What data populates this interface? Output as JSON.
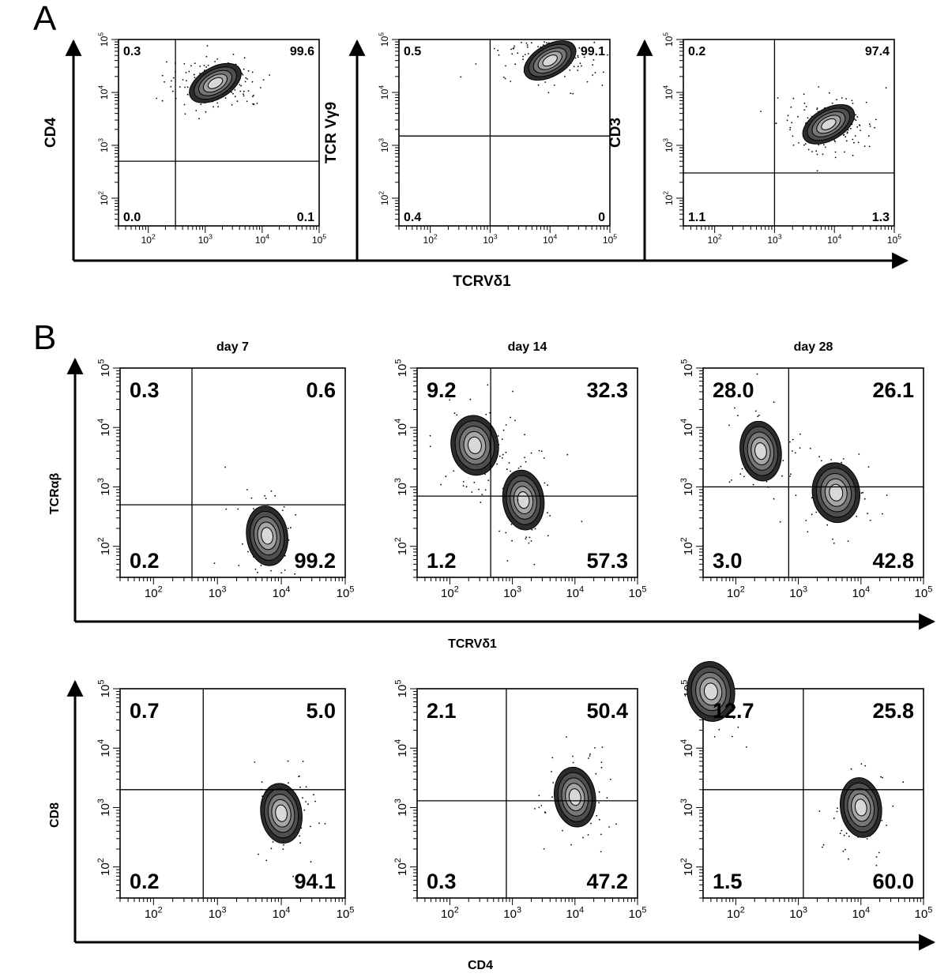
{
  "figure": {
    "panel_a_letter": "A",
    "panel_b_letter": "B",
    "panel_a_xlabel": "TCRVδ1",
    "panel_b_top_xlabel": "TCRVδ1",
    "panel_b_bottom_xlabel": "CD4",
    "panel_b_top_ylabel": "TCRαβ",
    "panel_b_bottom_ylabel": "CD8"
  },
  "chart_data": [
    {
      "type": "scatter",
      "panel": "A",
      "xlabel": "TCRVδ1",
      "ylabel": "CD4",
      "title": "",
      "axis_scale": "log",
      "xlim": [
        30,
        100000
      ],
      "ylim": [
        30,
        100000
      ],
      "x_tick_labels": [
        "10^2",
        "10^3",
        "10^4",
        "10^5"
      ],
      "y_tick_labels": [
        "10^2",
        "10^3",
        "10^4",
        "10^5"
      ],
      "gate": {
        "x": 300,
        "y": 500
      },
      "quadrant_percentages": {
        "upper_left": "0.3",
        "upper_right": "99.6",
        "lower_left": "0.0",
        "lower_right": "0.1"
      },
      "populations": [
        {
          "x": 1500,
          "y": 15000
        }
      ]
    },
    {
      "type": "scatter",
      "panel": "A",
      "xlabel": "TCRVδ1",
      "ylabel": "TCR Vγ9",
      "title": "",
      "axis_scale": "log",
      "xlim": [
        30,
        100000
      ],
      "ylim": [
        30,
        100000
      ],
      "x_tick_labels": [
        "10^2",
        "10^3",
        "10^4",
        "10^5"
      ],
      "y_tick_labels": [
        "10^2",
        "10^3",
        "10^4",
        "10^5"
      ],
      "gate": {
        "x": 1000,
        "y": 1500
      },
      "quadrant_percentages": {
        "upper_left": "0.5",
        "upper_right": "99.1",
        "lower_left": "0.4",
        "lower_right": "0"
      },
      "populations": [
        {
          "x": 10000,
          "y": 40000
        }
      ]
    },
    {
      "type": "scatter",
      "panel": "A",
      "xlabel": "TCRVδ1",
      "ylabel": "CD3",
      "title": "",
      "axis_scale": "log",
      "xlim": [
        30,
        100000
      ],
      "ylim": [
        30,
        100000
      ],
      "x_tick_labels": [
        "10^2",
        "10^3",
        "10^4",
        "10^5"
      ],
      "y_tick_labels": [
        "10^2",
        "10^3",
        "10^4",
        "10^5"
      ],
      "gate": {
        "x": 1000,
        "y": 300
      },
      "quadrant_percentages": {
        "upper_left": "0.2",
        "upper_right": "97.4",
        "lower_left": "1.1",
        "lower_right": "1.3"
      },
      "populations": [
        {
          "x": 8000,
          "y": 2500
        }
      ]
    },
    {
      "type": "scatter",
      "panel": "B",
      "title": "day 7",
      "xlabel": "TCRVδ1",
      "ylabel": "TCRαβ",
      "axis_scale": "log",
      "xlim": [
        30,
        100000
      ],
      "ylim": [
        30,
        100000
      ],
      "x_tick_labels": [
        "10^2",
        "10^3",
        "10^4",
        "10^5"
      ],
      "y_tick_labels": [
        "10^2",
        "10^3",
        "10^4",
        "10^5"
      ],
      "gate": {
        "x": 400,
        "y": 500
      },
      "quadrant_percentages": {
        "upper_left": "0.3",
        "upper_right": "0.6",
        "lower_left": "0.2",
        "lower_right": "99.2"
      },
      "populations": [
        {
          "x": 6000,
          "y": 150
        }
      ]
    },
    {
      "type": "scatter",
      "panel": "B",
      "title": "day 14",
      "xlabel": "TCRVδ1",
      "ylabel": "TCRαβ",
      "axis_scale": "log",
      "xlim": [
        30,
        100000
      ],
      "ylim": [
        30,
        100000
      ],
      "x_tick_labels": [
        "10^2",
        "10^3",
        "10^4",
        "10^5"
      ],
      "y_tick_labels": [
        "10^2",
        "10^3",
        "10^4",
        "10^5"
      ],
      "gate": {
        "x": 450,
        "y": 700
      },
      "quadrant_percentages": {
        "upper_left": "9.2",
        "upper_right": "32.3",
        "lower_left": "1.2",
        "lower_right": "57.3"
      },
      "populations": [
        {
          "x": 1500,
          "y": 600
        },
        {
          "x": 250,
          "y": 5000
        }
      ]
    },
    {
      "type": "scatter",
      "panel": "B",
      "title": "day 28",
      "xlabel": "TCRVδ1",
      "ylabel": "TCRαβ",
      "axis_scale": "log",
      "xlim": [
        30,
        100000
      ],
      "ylim": [
        30,
        100000
      ],
      "x_tick_labels": [
        "10^2",
        "10^3",
        "10^4",
        "10^5"
      ],
      "y_tick_labels": [
        "10^2",
        "10^3",
        "10^4",
        "10^5"
      ],
      "gate": {
        "x": 700,
        "y": 1000
      },
      "quadrant_percentages": {
        "upper_left": "28.0",
        "upper_right": "26.1",
        "lower_left": "3.0",
        "lower_right": "42.8"
      },
      "populations": [
        {
          "x": 250,
          "y": 4000
        },
        {
          "x": 4000,
          "y": 800
        }
      ]
    },
    {
      "type": "scatter",
      "panel": "B",
      "title": "",
      "xlabel": "CD4",
      "ylabel": "CD8",
      "axis_scale": "log",
      "xlim": [
        30,
        100000
      ],
      "ylim": [
        30,
        100000
      ],
      "x_tick_labels": [
        "10^2",
        "10^3",
        "10^4",
        "10^5"
      ],
      "y_tick_labels": [
        "10^2",
        "10^3",
        "10^4",
        "10^5"
      ],
      "gate": {
        "x": 600,
        "y": 2000
      },
      "quadrant_percentages": {
        "upper_left": "0.7",
        "upper_right": "5.0",
        "lower_left": "0.2",
        "lower_right": "94.1"
      },
      "populations": [
        {
          "x": 10000,
          "y": 800
        }
      ]
    },
    {
      "type": "scatter",
      "panel": "B",
      "title": "",
      "xlabel": "CD4",
      "ylabel": "CD8",
      "axis_scale": "log",
      "xlim": [
        30,
        100000
      ],
      "ylim": [
        30,
        100000
      ],
      "x_tick_labels": [
        "10^2",
        "10^3",
        "10^4",
        "10^5"
      ],
      "y_tick_labels": [
        "10^2",
        "10^3",
        "10^4",
        "10^5"
      ],
      "gate": {
        "x": 800,
        "y": 1300
      },
      "quadrant_percentages": {
        "upper_left": "2.1",
        "upper_right": "50.4",
        "lower_left": "0.3",
        "lower_right": "47.2"
      },
      "populations": [
        {
          "x": 10000,
          "y": 1500
        }
      ]
    },
    {
      "type": "scatter",
      "panel": "B",
      "title": "",
      "xlabel": "CD4",
      "ylabel": "CD8",
      "axis_scale": "log",
      "xlim": [
        30,
        100000
      ],
      "ylim": [
        30,
        100000
      ],
      "x_tick_labels": [
        "10^2",
        "10^3",
        "10^4",
        "10^5"
      ],
      "y_tick_labels": [
        "10^2",
        "10^3",
        "10^4",
        "10^5"
      ],
      "gate": {
        "x": 1200,
        "y": 2000
      },
      "quadrant_percentages": {
        "upper_left": "12.7",
        "upper_right": "25.8",
        "lower_left": "1.5",
        "lower_right": "60.0"
      },
      "populations": [
        {
          "x": 10000,
          "y": 1000
        },
        {
          "x": 40,
          "y": 90000
        }
      ]
    }
  ]
}
